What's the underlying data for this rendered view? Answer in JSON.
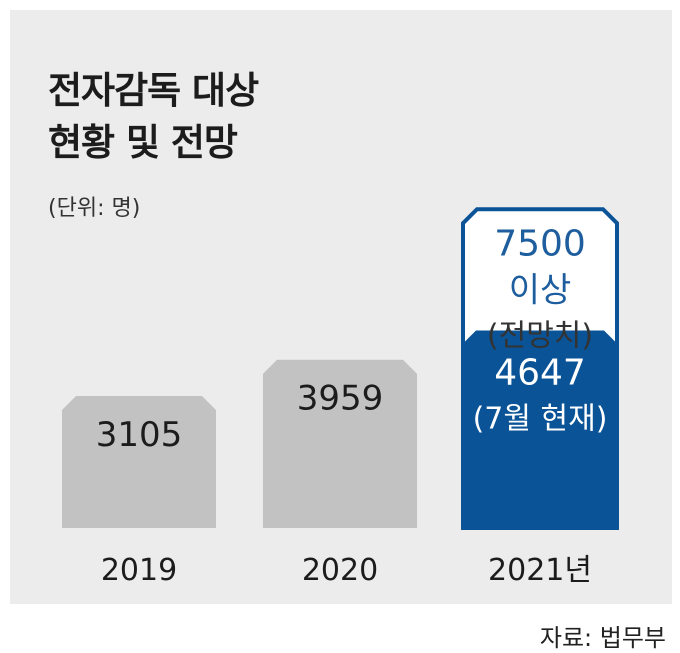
{
  "title_lines": [
    "전자감독 대상",
    "현황 및 전망"
  ],
  "unit": "(단위: 명)",
  "source": "자료: 법무부",
  "colors": {
    "background_panel": "#ececed",
    "bar_gray": "#c3c2c2",
    "bar_blue": "#0a5397",
    "blue_text": "#1e5e9e",
    "text_dark": "#1c1c1c"
  },
  "chart_data": {
    "type": "bar",
    "categories": [
      "2019",
      "2020",
      "2021년"
    ],
    "values": [
      3105,
      3959,
      4647
    ],
    "value_labels": [
      "3105",
      "3959",
      "4647"
    ],
    "value_sublabels": [
      "",
      "",
      "(7월 현재)"
    ],
    "projection": {
      "category": "2021년",
      "value": 7500,
      "label_lines": [
        "7500",
        "이상",
        "(전망치)"
      ]
    },
    "title": "전자감독 대상 현황 및 전망",
    "ylabel": "(단위: 명)"
  }
}
